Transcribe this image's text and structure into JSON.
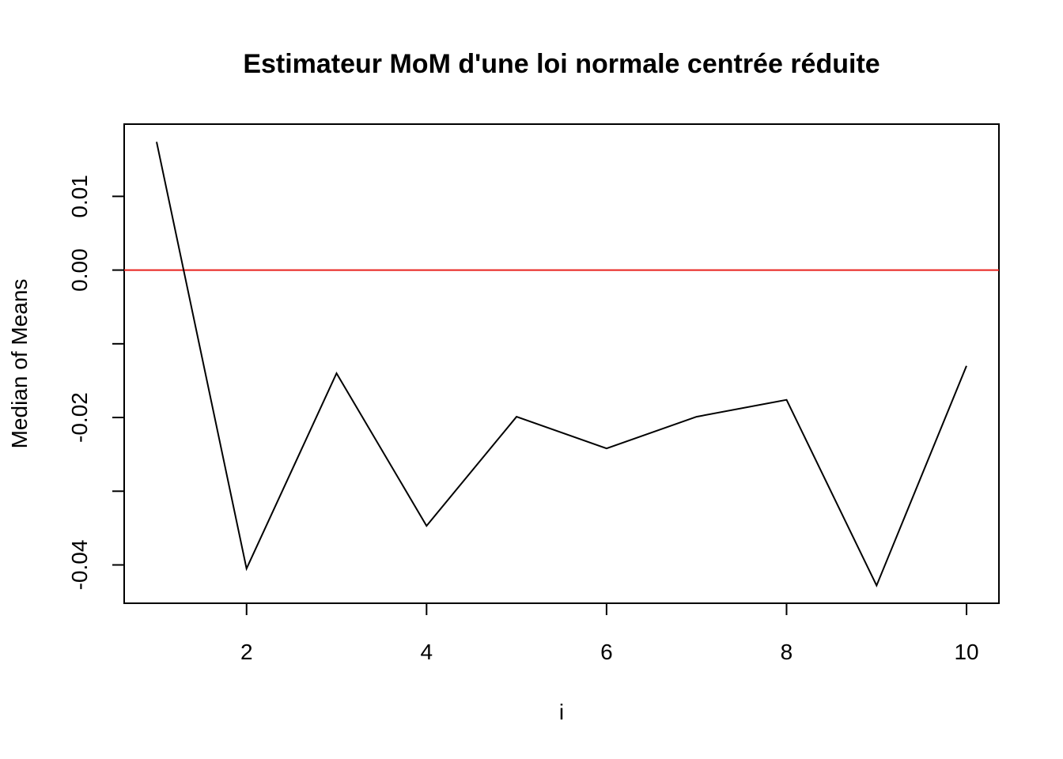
{
  "chart_data": {
    "type": "line",
    "title": "Estimateur MoM d'une loi normale centrée réduite",
    "xlabel": "i",
    "ylabel": "Median of Means",
    "xlim": [
      0.64,
      10.36
    ],
    "ylim": [
      -0.0452,
      0.0198
    ],
    "x_ticks": [
      2,
      4,
      6,
      8,
      10
    ],
    "x_tick_labels": [
      "2",
      "4",
      "6",
      "8",
      "10"
    ],
    "y_ticks": [
      -0.04,
      -0.03,
      -0.02,
      -0.01,
      0.0,
      0.01
    ],
    "y_tick_labels": [
      "-0.04",
      "",
      "-0.02",
      "",
      "0.00",
      "0.01"
    ],
    "grid": false,
    "series": [
      {
        "x": [
          1,
          2,
          3,
          4,
          5,
          6,
          7,
          8,
          9,
          10
        ],
        "values": [
          0.0174,
          -0.0405,
          -0.014,
          -0.0347,
          -0.0199,
          -0.0242,
          -0.0199,
          -0.0176,
          -0.0428,
          -0.013
        ],
        "color": "#000000"
      }
    ],
    "reference_line": {
      "y": 0.0,
      "color": "#e8221c"
    }
  }
}
